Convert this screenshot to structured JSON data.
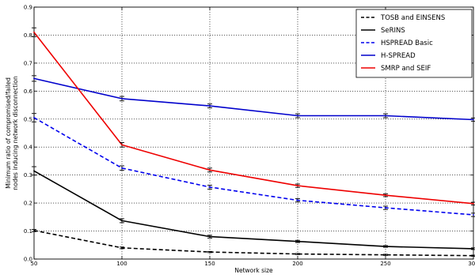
{
  "chart_data": {
    "type": "line",
    "xlabel": "Network size",
    "ylabel": [
      "Minimum ratio of compromised/failed",
      "nodes inducing network disconnection"
    ],
    "x": [
      50,
      100,
      150,
      200,
      250,
      300
    ],
    "x_tick_labels": [
      "50",
      "100",
      "150",
      "200",
      "250",
      "300"
    ],
    "xlim": [
      50,
      300
    ],
    "ylim": [
      0.0,
      0.9
    ],
    "y_ticks": [
      0.0,
      0.1,
      0.2,
      0.3,
      0.4,
      0.5,
      0.6,
      0.7,
      0.8,
      0.9
    ],
    "y_tick_labels": [
      "0.0",
      "0.1",
      "0.2",
      "0.3",
      "0.4",
      "0.5",
      "0.6",
      "0.7",
      "0.8",
      "0.9"
    ],
    "grid": true,
    "legend_position": "top-right",
    "series": [
      {
        "name": "TOSB and EINSENS",
        "color": "#000000",
        "dashed": true,
        "values": [
          0.102,
          0.04,
          0.025,
          0.018,
          0.015,
          0.012
        ],
        "errors": [
          0.004,
          0.003,
          0.002,
          0.002,
          0.002,
          0.002
        ]
      },
      {
        "name": "SeRINS",
        "color": "#000000",
        "dashed": false,
        "values": [
          0.315,
          0.137,
          0.08,
          0.063,
          0.045,
          0.037
        ],
        "errors": [
          0.015,
          0.007,
          0.005,
          0.004,
          0.003,
          0.003
        ]
      },
      {
        "name": "HSPREAD Basic",
        "color": "#0000ee",
        "dashed": true,
        "values": [
          0.505,
          0.325,
          0.257,
          0.21,
          0.183,
          0.158
        ],
        "errors": [
          0.015,
          0.008,
          0.007,
          0.006,
          0.006,
          0.006
        ]
      },
      {
        "name": "H-SPREAD",
        "color": "#0000cc",
        "dashed": false,
        "values": [
          0.645,
          0.573,
          0.547,
          0.512,
          0.512,
          0.498
        ],
        "errors": [
          0.01,
          0.008,
          0.007,
          0.007,
          0.007,
          0.006
        ]
      },
      {
        "name": "SMRP and SEIF",
        "color": "#ee0000",
        "dashed": false,
        "values": [
          0.81,
          0.408,
          0.318,
          0.262,
          0.228,
          0.198
        ],
        "errors": [
          0.016,
          0.008,
          0.007,
          0.006,
          0.005,
          0.005
        ]
      }
    ]
  }
}
